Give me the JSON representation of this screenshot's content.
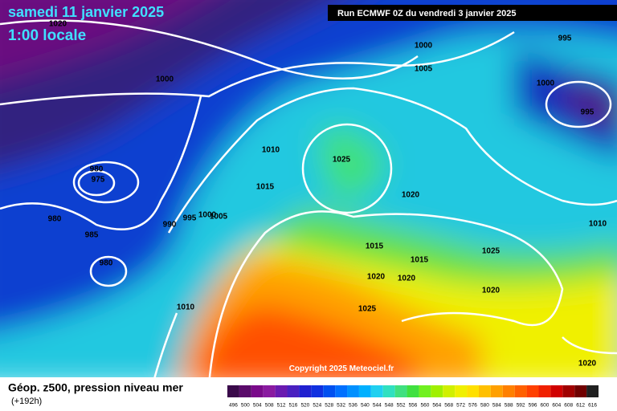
{
  "header": {
    "date": "samedi 11 janvier 2025",
    "time": "1:00 locale",
    "run": "Run ECMWF 0Z du vendredi 3 janvier 2025"
  },
  "copyright": "Copyright 2025 Meteociel.fr",
  "footer": {
    "title": "Géop. z500, pression niveau mer",
    "lead": "(+192h)"
  },
  "scale": {
    "values": [
      496,
      500,
      504,
      508,
      512,
      516,
      520,
      524,
      528,
      532,
      536,
      540,
      544,
      548,
      552,
      556,
      560,
      564,
      568,
      572,
      576,
      580,
      584,
      588,
      592,
      596,
      600,
      604,
      608,
      612,
      616
    ],
    "colors": [
      "#3a0a4a",
      "#5a0a6a",
      "#7a0a8a",
      "#8a1aa0",
      "#6a1ab0",
      "#4a20c0",
      "#2020d0",
      "#1030e0",
      "#0050f0",
      "#0070ff",
      "#0090ff",
      "#00b0ff",
      "#20d0f0",
      "#30e0c0",
      "#40e080",
      "#40e040",
      "#70f020",
      "#a0f000",
      "#d0f000",
      "#f0f000",
      "#ffe000",
      "#ffc000",
      "#ffa000",
      "#ff8000",
      "#ff6000",
      "#ff4000",
      "#f02000",
      "#d00000",
      "#a00000",
      "#700000",
      "#202020"
    ]
  },
  "isobars": {
    "labels": [
      1020,
      1000,
      1000,
      995,
      1005,
      1000,
      995,
      980,
      975,
      980,
      985,
      980,
      990,
      995,
      1000,
      1005,
      1010,
      1015,
      1025,
      1020,
      1015,
      1015,
      1025,
      1020,
      1020,
      1020,
      1025,
      1010,
      1010,
      1020
    ]
  }
}
